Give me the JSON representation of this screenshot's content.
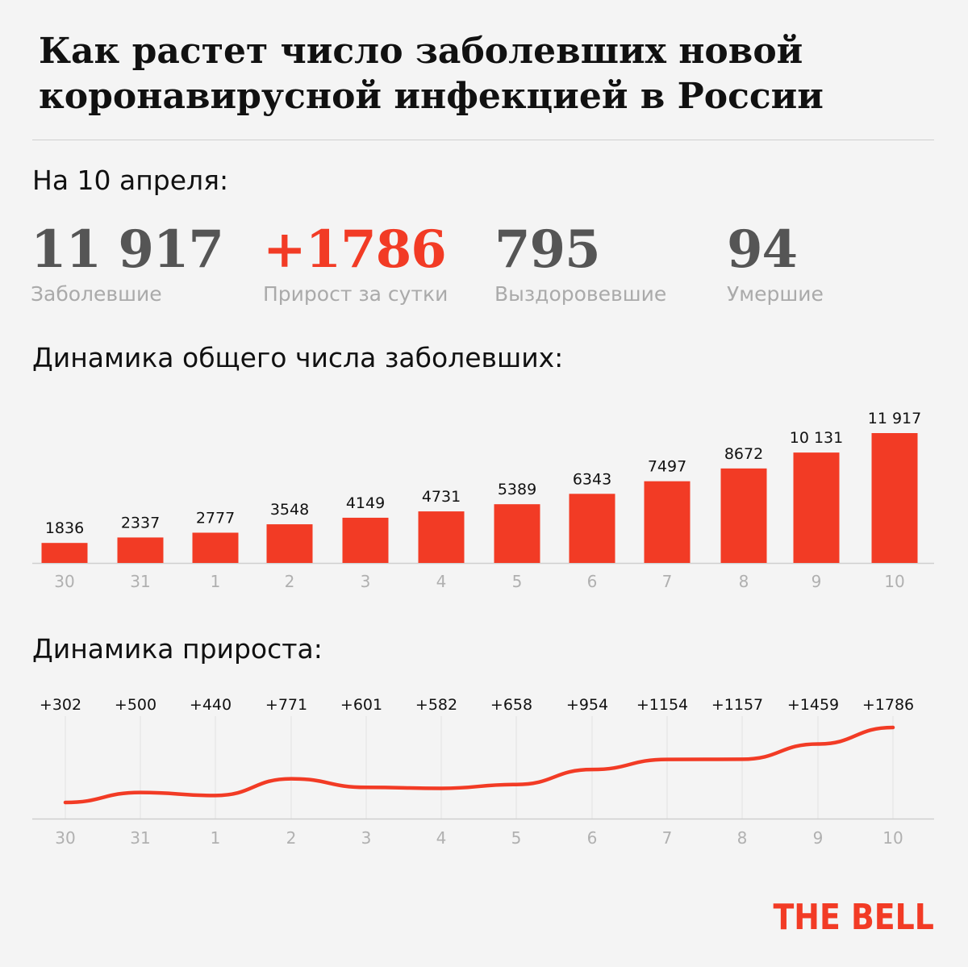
{
  "title": {
    "line1": "Как растет число заболевших новой",
    "line2": "коронавирусной инфекцией в России"
  },
  "date_label": "На 10 апреля:",
  "stats": [
    {
      "value": "11 917",
      "label": "Заболевшие"
    },
    {
      "value": "+1786",
      "label": "Прирост за сутки"
    },
    {
      "value": "795",
      "label": "Выздоровевшие"
    },
    {
      "value": "94",
      "label": "Умершие"
    }
  ],
  "colors": {
    "accent": "#f23b25",
    "stat": "#555555",
    "muted": "#aaaaaa",
    "grid": "#dddddd"
  },
  "logo": "THE BELL",
  "chart_data": [
    {
      "type": "bar",
      "title": "Динамика общего числа заболевших:",
      "categories": [
        "30",
        "31",
        "1",
        "2",
        "3",
        "4",
        "5",
        "6",
        "7",
        "8",
        "9",
        "10"
      ],
      "values": [
        1836,
        2337,
        2777,
        3548,
        4149,
        4731,
        5389,
        6343,
        7497,
        8672,
        10131,
        11917
      ],
      "value_labels": [
        "1836",
        "2337",
        "2777",
        "3548",
        "4149",
        "4731",
        "5389",
        "6343",
        "7497",
        "8672",
        "10 131",
        "11 917"
      ],
      "ylim": [
        0,
        11917
      ],
      "grid": false,
      "color": "#f23b25"
    },
    {
      "type": "line",
      "title": "Динамика прироста:",
      "categories": [
        "30",
        "31",
        "1",
        "2",
        "3",
        "4",
        "5",
        "6",
        "7",
        "8",
        "9",
        "10"
      ],
      "values": [
        302,
        500,
        440,
        771,
        601,
        582,
        658,
        954,
        1154,
        1157,
        1459,
        1786
      ],
      "value_labels": [
        "+302",
        "+500",
        "+440",
        "+771",
        "+601",
        "+582",
        "+658",
        "+954",
        "+1154",
        "+1157",
        "+1459",
        "+1786"
      ],
      "grid": true,
      "color": "#f23b25"
    }
  ]
}
